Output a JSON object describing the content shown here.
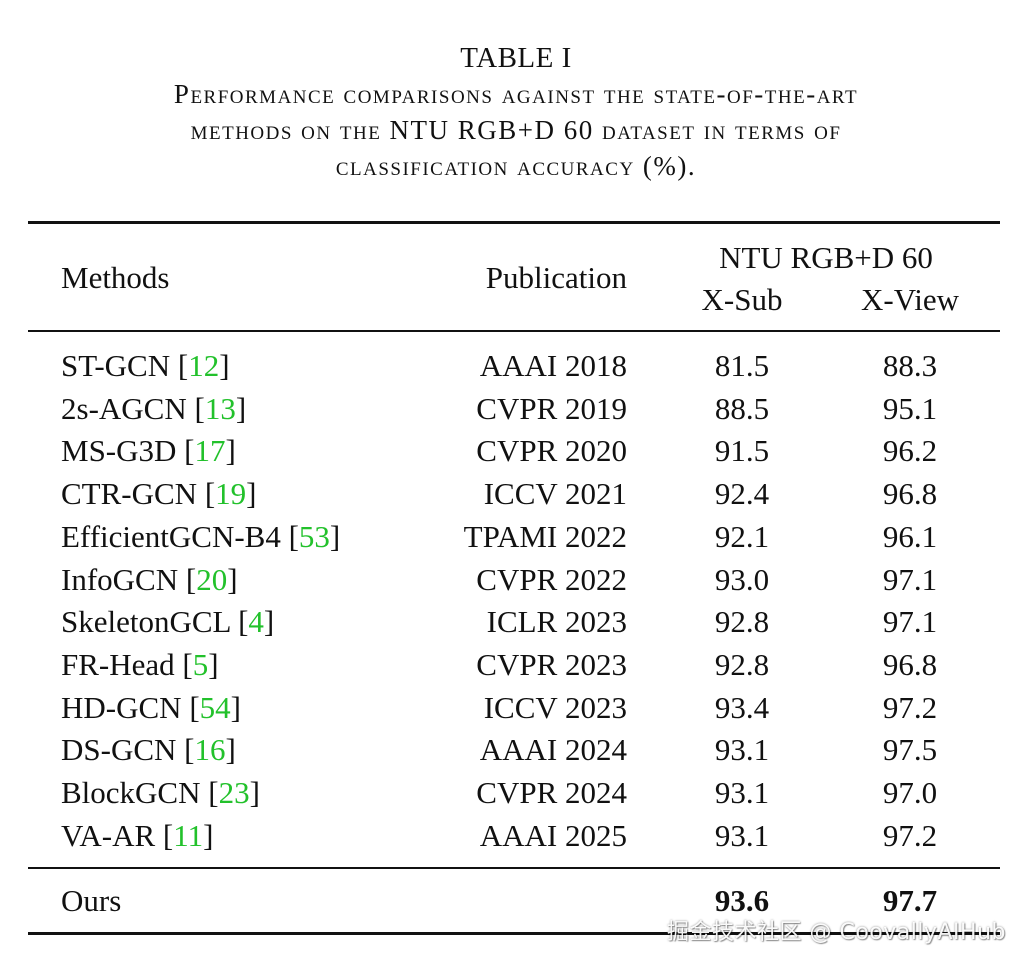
{
  "caption": {
    "label": "TABLE I",
    "title_lines": [
      "Performance comparisons against the state-of-the-art",
      "methods on the NTU RGB+D 60 dataset in terms of",
      "classification accuracy (%)."
    ]
  },
  "header": {
    "methods": "Methods",
    "publication": "Publication",
    "dataset": "NTU RGB+D 60",
    "xsub": "X-Sub",
    "xview": "X-View"
  },
  "rows": [
    {
      "method": "ST-GCN",
      "ref": "12",
      "publication": "AAAI 2018",
      "xsub": "81.5",
      "xview": "88.3"
    },
    {
      "method": "2s-AGCN",
      "ref": "13",
      "publication": "CVPR 2019",
      "xsub": "88.5",
      "xview": "95.1"
    },
    {
      "method": "MS-G3D",
      "ref": "17",
      "publication": "CVPR 2020",
      "xsub": "91.5",
      "xview": "96.2"
    },
    {
      "method": "CTR-GCN",
      "ref": "19",
      "publication": "ICCV 2021",
      "xsub": "92.4",
      "xview": "96.8"
    },
    {
      "method": "EfficientGCN-B4",
      "ref": "53",
      "publication": "TPAMI 2022",
      "xsub": "92.1",
      "xview": "96.1"
    },
    {
      "method": "InfoGCN",
      "ref": "20",
      "publication": "CVPR 2022",
      "xsub": "93.0",
      "xview": "97.1"
    },
    {
      "method": "SkeletonGCL",
      "ref": "4",
      "publication": "ICLR 2023",
      "xsub": "92.8",
      "xview": "97.1"
    },
    {
      "method": "FR-Head",
      "ref": "5",
      "publication": "CVPR 2023",
      "xsub": "92.8",
      "xview": "96.8"
    },
    {
      "method": "HD-GCN",
      "ref": "54",
      "publication": "ICCV 2023",
      "xsub": "93.4",
      "xview": "97.2"
    },
    {
      "method": "DS-GCN",
      "ref": "16",
      "publication": "AAAI 2024",
      "xsub": "93.1",
      "xview": "97.5"
    },
    {
      "method": "BlockGCN",
      "ref": "23",
      "publication": "CVPR 2024",
      "xsub": "93.1",
      "xview": "97.0"
    },
    {
      "method": "VA-AR",
      "ref": "11",
      "publication": "AAAI 2025",
      "xsub": "93.1",
      "xview": "97.2"
    }
  ],
  "ours": {
    "method": "Ours",
    "publication": "",
    "xsub": "93.6",
    "xview": "97.7"
  },
  "watermark": "掘金技术社区 @ CoovallyAIHub",
  "colors": {
    "ref_link": "#22c12b",
    "text": "#111111"
  }
}
